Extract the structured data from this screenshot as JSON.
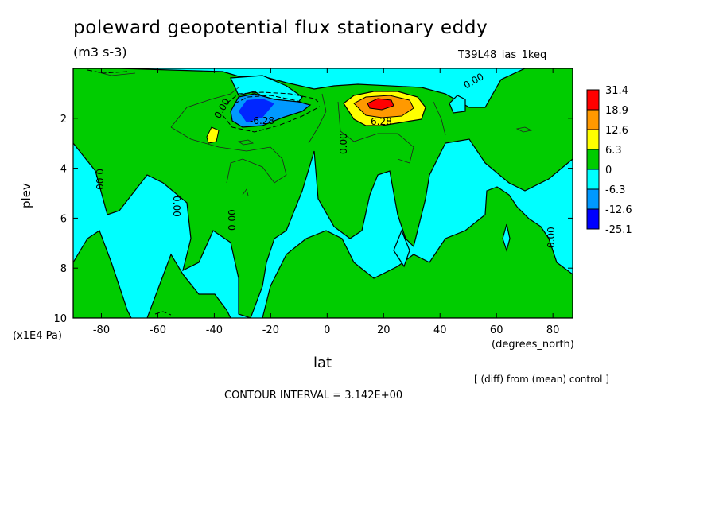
{
  "chart_data": {
    "type": "contour",
    "title": "poleward geopotential flux stationary eddy",
    "units": "(m3 s-3)",
    "run_label": "T39L48_ias_1keq",
    "xlabel": "lat",
    "x_units": "(degrees_north)",
    "ylabel": "plev",
    "y_units": "(x1E4 Pa)",
    "xlim": [
      -90,
      87
    ],
    "ylim": [
      10,
      0
    ],
    "x_ticks": [
      -80,
      -60,
      -40,
      -20,
      0,
      20,
      40,
      60,
      80
    ],
    "y_ticks": [
      2,
      4,
      6,
      8,
      10
    ],
    "contour_labels": [
      "0.00",
      "-6.28",
      "6.28"
    ],
    "contour_interval": "CONTOUR INTERVAL = 3.142E+00",
    "note": "[ (diff) from (mean) control ]",
    "colorbar": {
      "levels": [
        "31.4",
        "18.9",
        "12.6",
        "6.3",
        "0",
        "-6.3",
        "-12.6",
        "-25.1"
      ],
      "colors": [
        "#ff0000",
        "#ff9900",
        "#ffff00",
        "#00cc00",
        "#00ffff",
        "#0099ff",
        "#0000ff"
      ]
    },
    "features": [
      {
        "type": "minimum",
        "lat": -27,
        "plev": 1.8,
        "value_range": "-25.1 to -12.6"
      },
      {
        "type": "maximum",
        "lat": 20,
        "plev": 1.5,
        "value_range": "18.9 to 31.4"
      }
    ]
  }
}
